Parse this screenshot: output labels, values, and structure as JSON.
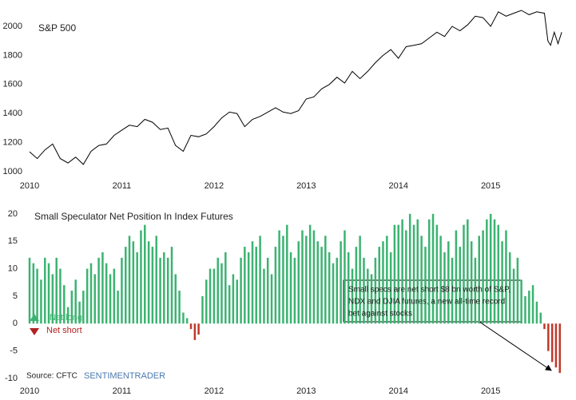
{
  "chart_data": [
    {
      "type": "line",
      "title": "S&P 500",
      "color": "#000000",
      "x": [
        2010,
        2010.083,
        2010.167,
        2010.25,
        2010.333,
        2010.417,
        2010.5,
        2010.583,
        2010.667,
        2010.75,
        2010.833,
        2010.917,
        2011,
        2011.083,
        2011.167,
        2011.25,
        2011.333,
        2011.417,
        2011.5,
        2011.583,
        2011.667,
        2011.75,
        2011.833,
        2011.917,
        2012,
        2012.083,
        2012.167,
        2012.25,
        2012.333,
        2012.417,
        2012.5,
        2012.583,
        2012.667,
        2012.75,
        2012.833,
        2012.917,
        2013,
        2013.083,
        2013.167,
        2013.25,
        2013.333,
        2013.417,
        2013.5,
        2013.583,
        2013.667,
        2013.75,
        2013.833,
        2013.917,
        2014,
        2014.083,
        2014.167,
        2014.25,
        2014.333,
        2014.417,
        2014.5,
        2014.583,
        2014.667,
        2014.75,
        2014.833,
        2014.917,
        2015,
        2015.083,
        2015.167,
        2015.25,
        2015.333,
        2015.417,
        2015.5,
        2015.583,
        2015.62,
        2015.65,
        2015.69,
        2015.73,
        2015.77
      ],
      "values": [
        1137,
        1090,
        1150,
        1190,
        1090,
        1060,
        1100,
        1050,
        1140,
        1180,
        1190,
        1250,
        1285,
        1320,
        1310,
        1360,
        1340,
        1290,
        1300,
        1180,
        1140,
        1250,
        1240,
        1260,
        1310,
        1370,
        1410,
        1400,
        1310,
        1360,
        1380,
        1410,
        1440,
        1410,
        1400,
        1420,
        1500,
        1515,
        1570,
        1600,
        1650,
        1610,
        1690,
        1640,
        1690,
        1750,
        1800,
        1840,
        1780,
        1860,
        1870,
        1880,
        1920,
        1960,
        1930,
        2000,
        1970,
        2010,
        2070,
        2060,
        2000,
        2100,
        2070,
        2090,
        2110,
        2080,
        2100,
        2090,
        1900,
        1870,
        1960,
        1880,
        1960
      ],
      "xlim": [
        2010,
        2015.83
      ],
      "xticks": [
        2010,
        2011,
        2012,
        2013,
        2014,
        2015
      ],
      "ylim": [
        1000,
        2150
      ],
      "yticks": [
        1000,
        1200,
        1400,
        1600,
        1800,
        2000
      ]
    },
    {
      "type": "bar",
      "title": "Small Speculator Net Position In Index Futures",
      "x": [
        2010,
        2010.042,
        2010.083,
        2010.125,
        2010.167,
        2010.208,
        2010.25,
        2010.292,
        2010.333,
        2010.375,
        2010.417,
        2010.458,
        2010.5,
        2010.542,
        2010.583,
        2010.625,
        2010.667,
        2010.708,
        2010.75,
        2010.792,
        2010.833,
        2010.875,
        2010.917,
        2010.958,
        2011,
        2011.042,
        2011.083,
        2011.125,
        2011.167,
        2011.208,
        2011.25,
        2011.292,
        2011.333,
        2011.375,
        2011.417,
        2011.458,
        2011.5,
        2011.542,
        2011.583,
        2011.625,
        2011.667,
        2011.708,
        2011.75,
        2011.792,
        2011.833,
        2011.875,
        2011.917,
        2011.958,
        2012,
        2012.042,
        2012.083,
        2012.125,
        2012.167,
        2012.208,
        2012.25,
        2012.292,
        2012.333,
        2012.375,
        2012.417,
        2012.458,
        2012.5,
        2012.542,
        2012.583,
        2012.625,
        2012.667,
        2012.708,
        2012.75,
        2012.792,
        2012.833,
        2012.875,
        2012.917,
        2012.958,
        2013,
        2013.042,
        2013.083,
        2013.125,
        2013.167,
        2013.208,
        2013.25,
        2013.292,
        2013.333,
        2013.375,
        2013.417,
        2013.458,
        2013.5,
        2013.542,
        2013.583,
        2013.625,
        2013.667,
        2013.708,
        2013.75,
        2013.792,
        2013.833,
        2013.875,
        2013.917,
        2013.958,
        2014,
        2014.042,
        2014.083,
        2014.125,
        2014.167,
        2014.208,
        2014.25,
        2014.292,
        2014.333,
        2014.375,
        2014.417,
        2014.458,
        2014.5,
        2014.542,
        2014.583,
        2014.625,
        2014.667,
        2014.708,
        2014.75,
        2014.792,
        2014.833,
        2014.875,
        2014.917,
        2014.958,
        2015,
        2015.042,
        2015.083,
        2015.125,
        2015.167,
        2015.208,
        2015.25,
        2015.292,
        2015.333,
        2015.375,
        2015.417,
        2015.458,
        2015.5,
        2015.542,
        2015.583,
        2015.625,
        2015.667,
        2015.708,
        2015.75
      ],
      "values": [
        12,
        11,
        10,
        8,
        12,
        11,
        9,
        12,
        10,
        7,
        3,
        6,
        8,
        4,
        6,
        10,
        11,
        9,
        12,
        13,
        11,
        9,
        10,
        6,
        12,
        14,
        16,
        15,
        13,
        17,
        18,
        15,
        14,
        16,
        12,
        13,
        12,
        14,
        9,
        6,
        2,
        1,
        -1,
        -3,
        -2,
        5,
        8,
        10,
        10,
        12,
        11,
        13,
        7,
        9,
        8,
        12,
        14,
        13,
        15,
        14,
        16,
        10,
        12,
        9,
        14,
        17,
        16,
        18,
        13,
        12,
        15,
        17,
        16,
        18,
        17,
        15,
        14,
        16,
        13,
        11,
        12,
        15,
        17,
        13,
        10,
        14,
        16,
        12,
        10,
        9,
        12,
        14,
        15,
        16,
        13,
        18,
        18,
        19,
        17,
        20,
        18,
        19,
        16,
        14,
        19,
        20,
        18,
        16,
        13,
        15,
        12,
        17,
        14,
        18,
        19,
        15,
        12,
        16,
        17,
        19,
        20,
        19,
        18,
        15,
        17,
        13,
        10,
        12,
        8,
        5,
        6,
        7,
        4,
        2,
        -1,
        -5,
        -7,
        -8,
        -9
      ],
      "colors": {
        "positive": "#3cb371",
        "negative": "#c0392b"
      },
      "legend": [
        "Net long",
        "Net short"
      ],
      "annotation": [
        "Small specs are net short $8 bn worth of S&P,",
        "NDX and DJIA futures, a new all-time  record",
        "bet against stocks"
      ],
      "source": "Source: CFTC",
      "brand": "SENTIMENTRADER",
      "xlim": [
        2010,
        2015.83
      ],
      "xticks": [
        2010,
        2011,
        2012,
        2013,
        2014,
        2015
      ],
      "ylim": [
        -10,
        21
      ],
      "yticks": [
        -10,
        -5,
        0,
        5,
        10,
        15,
        20
      ]
    }
  ]
}
